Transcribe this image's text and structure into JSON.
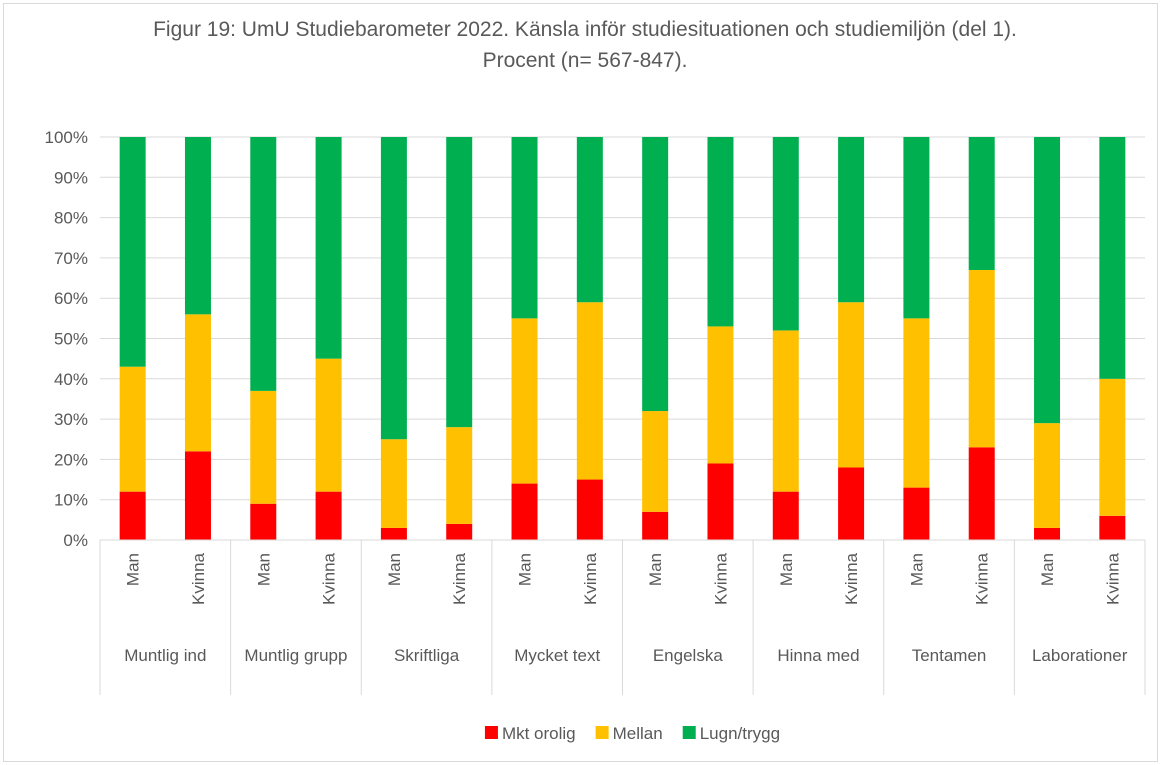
{
  "chart_data": {
    "type": "stacked_bar",
    "title": "Figur 19: UmU Studiebarometer 2022. Känsla inför studiesituationen och studiemiljön (del 1). Procent (n= 567-847).",
    "groups": [
      "Muntlig ind",
      "Muntlig grupp",
      "Skriftliga",
      "Mycket text",
      "Engelska",
      "Hinna med",
      "Tentamen",
      "Laborationer"
    ],
    "categories": [
      "Man",
      "Kvinna",
      "Man",
      "Kvinna",
      "Man",
      "Kvinna",
      "Man",
      "Kvinna",
      "Man",
      "Kvinna",
      "Man",
      "Kvinna",
      "Man",
      "Kvinna",
      "Man",
      "Kvinna"
    ],
    "series": [
      {
        "name": "Mkt orolig",
        "color": "#ff0000",
        "values": [
          12,
          22,
          9,
          12,
          3,
          4,
          14,
          15,
          7,
          19,
          12,
          18,
          13,
          23,
          3,
          6
        ]
      },
      {
        "name": "Mellan",
        "color": "#ffc000",
        "values": [
          31,
          34,
          28,
          33,
          22,
          24,
          41,
          44,
          25,
          34,
          40,
          41,
          42,
          44,
          26,
          34
        ]
      },
      {
        "name": "Lugn/trygg",
        "color": "#00b050",
        "values": [
          57,
          44,
          63,
          55,
          75,
          72,
          45,
          41,
          68,
          47,
          48,
          41,
          45,
          33,
          71,
          60
        ]
      }
    ],
    "ylim": [
      0,
      100
    ],
    "yticks": [
      {
        "value": 0,
        "label": "0%"
      },
      {
        "value": 10,
        "label": "10%"
      },
      {
        "value": 20,
        "label": "20%"
      },
      {
        "value": 30,
        "label": "30%"
      },
      {
        "value": 40,
        "label": "40%"
      },
      {
        "value": 50,
        "label": "50%"
      },
      {
        "value": 60,
        "label": "60%"
      },
      {
        "value": 70,
        "label": "70%"
      },
      {
        "value": 80,
        "label": "80%"
      },
      {
        "value": 90,
        "label": "90%"
      },
      {
        "value": 100,
        "label": "100%"
      }
    ],
    "grid": true,
    "legend": "bottom"
  }
}
